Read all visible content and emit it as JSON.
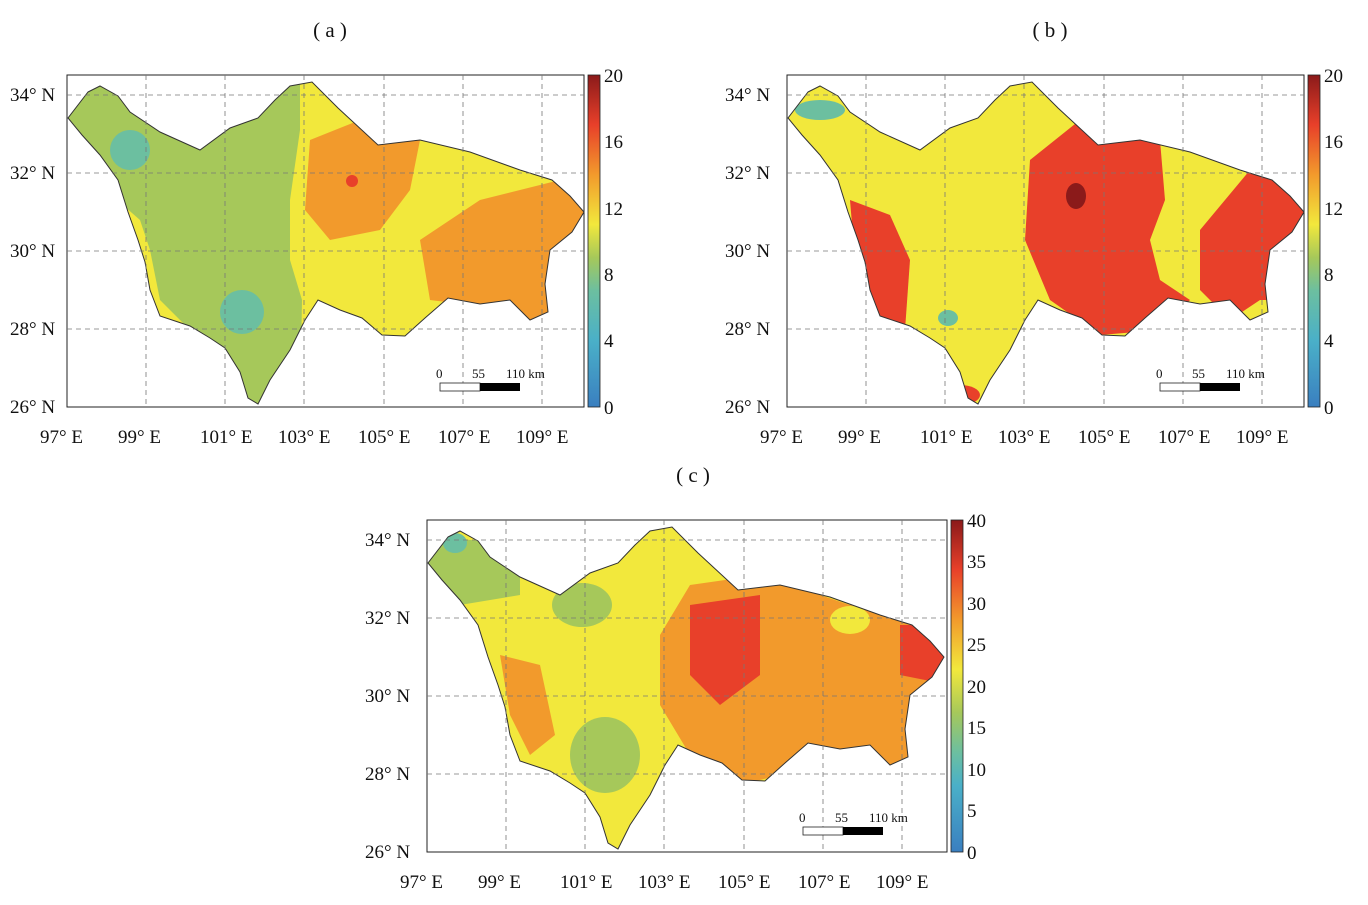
{
  "panels": [
    {
      "label": "( a )",
      "x_ticks": [
        "97° E",
        "99° E",
        "101° E",
        "103° E",
        "105° E",
        "107° E",
        "109° E"
      ],
      "y_ticks": [
        "34° N",
        "32° N",
        "30° N",
        "28° N",
        "26° N"
      ],
      "colorbar_ticks": [
        "20",
        "16",
        "12",
        "8",
        "4",
        "0"
      ],
      "colorbar_range": [
        0,
        20
      ],
      "scale_bar": {
        "labels": [
          "0",
          "55",
          "110 km"
        ]
      }
    },
    {
      "label": "( b )",
      "x_ticks": [
        "97° E",
        "99° E",
        "101° E",
        "103° E",
        "105° E",
        "107° E",
        "109° E"
      ],
      "y_ticks": [
        "34° N",
        "32° N",
        "30° N",
        "28° N",
        "26° N"
      ],
      "colorbar_ticks": [
        "20",
        "16",
        "12",
        "8",
        "4",
        "0"
      ],
      "colorbar_range": [
        0,
        20
      ],
      "scale_bar": {
        "labels": [
          "0",
          "55",
          "110 km"
        ]
      }
    },
    {
      "label": "( c )",
      "x_ticks": [
        "97° E",
        "99° E",
        "101° E",
        "103° E",
        "105° E",
        "107° E",
        "109° E"
      ],
      "y_ticks": [
        "34° N",
        "32° N",
        "30° N",
        "28° N",
        "26° N"
      ],
      "colorbar_ticks": [
        "40",
        "35",
        "30",
        "25",
        "20",
        "15",
        "10",
        "5",
        "0"
      ],
      "colorbar_range": [
        0,
        40
      ],
      "scale_bar": {
        "labels": [
          "0",
          "55",
          "110 km"
        ]
      }
    }
  ],
  "colors": {
    "dark_red": "#8b1a1a",
    "red": "#e8402a",
    "orange": "#f29a2c",
    "yellow": "#f2e83c",
    "green": "#a6c85a",
    "teal": "#6cbfa0",
    "blue": "#3a7fc0"
  }
}
